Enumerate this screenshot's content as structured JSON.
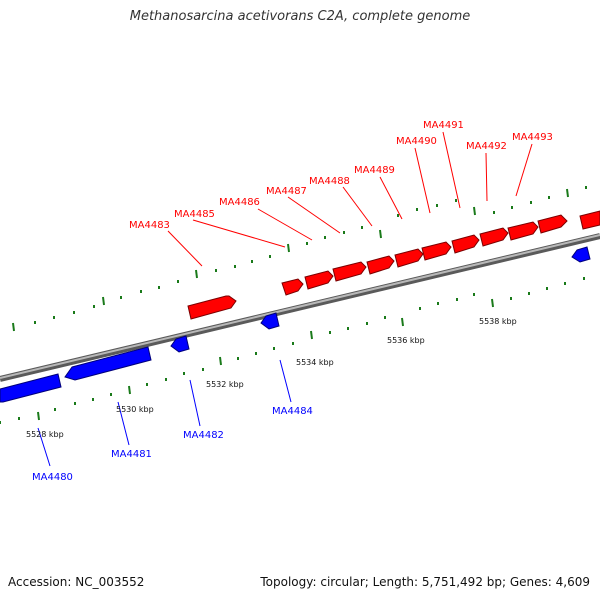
{
  "title": "Methanosarcina acetivorans C2A, complete genome",
  "footer": {
    "accession": "Accession: NC_003552",
    "summary": "Topology: circular; Length: 5,751,492 bp; Genes: 4,609"
  },
  "colors": {
    "forward_gene": "#ff0000",
    "reverse_gene": "#0000ff",
    "backbone": "#8a8a8a",
    "tick": "#1a7a1a"
  },
  "scale_labels": [
    "5528 kbp",
    "5530 kbp",
    "5532 kbp",
    "5534 kbp",
    "5536 kbp",
    "5538 kbp"
  ],
  "genes_forward": [
    "MA4483",
    "MA4485",
    "MA4486",
    "MA4487",
    "MA4488",
    "MA4489",
    "MA4490",
    "MA4491",
    "MA4492",
    "MA4493"
  ],
  "genes_reverse": [
    "MA4480",
    "MA4481",
    "MA4482",
    "MA4484"
  ]
}
